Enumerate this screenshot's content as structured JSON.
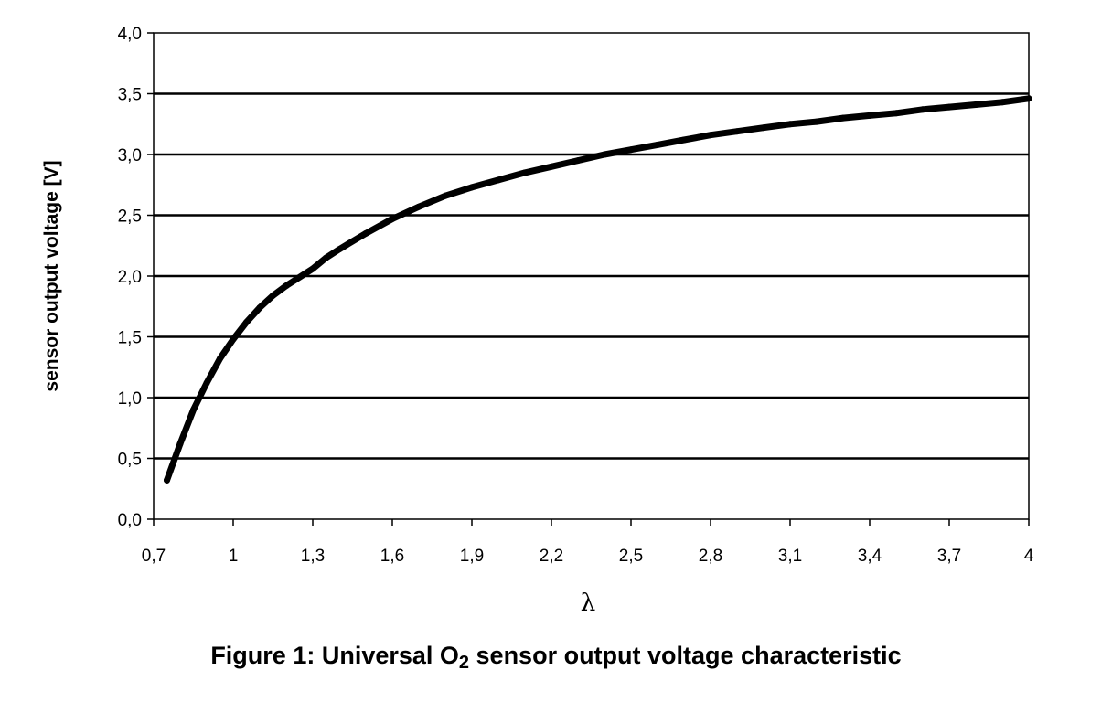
{
  "chart_data": {
    "type": "line",
    "xlabel": "λ",
    "ylabel": "sensor output voltage [V]",
    "xlim": [
      0.7,
      4.0
    ],
    "ylim": [
      0.0,
      4.0
    ],
    "x_ticks": [
      "0,7",
      "1",
      "1,3",
      "1,6",
      "1,9",
      "2,2",
      "2,5",
      "2,8",
      "3,1",
      "3,4",
      "3,7",
      "4"
    ],
    "x_tick_values": [
      0.7,
      1.0,
      1.3,
      1.6,
      1.9,
      2.2,
      2.5,
      2.8,
      3.1,
      3.4,
      3.7,
      4.0
    ],
    "y_ticks": [
      "0,0",
      "0,5",
      "1,0",
      "1,5",
      "2,0",
      "2,5",
      "3,0",
      "3,5",
      "4,0"
    ],
    "y_tick_values": [
      0.0,
      0.5,
      1.0,
      1.5,
      2.0,
      2.5,
      3.0,
      3.5,
      4.0
    ],
    "grid": "horizontal",
    "line_color": "#000000",
    "series": [
      {
        "x": [
          0.75,
          0.8,
          0.85,
          0.9,
          0.95,
          1.0,
          1.05,
          1.1,
          1.15,
          1.2,
          1.3,
          1.35,
          1.4,
          1.5,
          1.6,
          1.7,
          1.8,
          1.9,
          2.0,
          2.1,
          2.2,
          2.3,
          2.4,
          2.5,
          2.6,
          2.7,
          2.8,
          2.9,
          3.0,
          3.1,
          3.2,
          3.3,
          3.4,
          3.5,
          3.6,
          3.7,
          3.8,
          3.9,
          4.0
        ],
        "values": [
          0.32,
          0.62,
          0.9,
          1.12,
          1.32,
          1.48,
          1.62,
          1.74,
          1.84,
          1.92,
          2.06,
          2.15,
          2.22,
          2.35,
          2.47,
          2.57,
          2.66,
          2.73,
          2.79,
          2.85,
          2.9,
          2.95,
          3.0,
          3.04,
          3.08,
          3.12,
          3.16,
          3.19,
          3.22,
          3.25,
          3.27,
          3.3,
          3.32,
          3.34,
          3.37,
          3.39,
          3.41,
          3.43,
          3.46
        ]
      }
    ]
  },
  "caption": {
    "prefix": "Figure 1: Universal O",
    "subscript": "2",
    "suffix": " sensor output voltage characteristic"
  }
}
